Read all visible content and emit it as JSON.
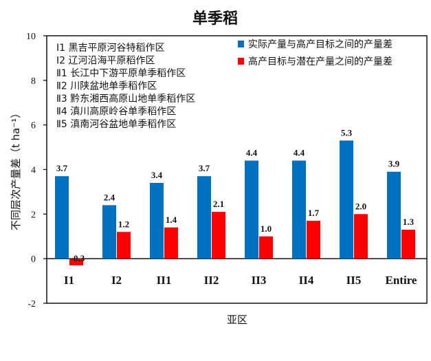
{
  "chart_data": {
    "type": "bar",
    "title": "单季稻",
    "xlabel": "亚区",
    "ylabel": "不同层次产量差（t ha⁻¹）",
    "ylim": [
      -2,
      10
    ],
    "yticks": [
      -2,
      0,
      2,
      4,
      6,
      8,
      10
    ],
    "grid": false,
    "legend_position": "top-right",
    "categories": [
      "I1",
      "I2",
      "II1",
      "II2",
      "II3",
      "II4",
      "II5",
      "Entire"
    ],
    "series": [
      {
        "name": "实际产量与高产目标之间的产量差",
        "color": "#0070c0",
        "values": [
          3.7,
          2.4,
          3.4,
          3.7,
          4.4,
          4.4,
          5.3,
          3.9
        ],
        "labels": [
          "3.7",
          "2.4",
          "3.4",
          "3.7",
          "4.4",
          "4.4",
          "5.3",
          "3.9"
        ]
      },
      {
        "name": "高产目标与潜在产量之间的产量差",
        "color": "#ff0000",
        "values": [
          -0.3,
          1.2,
          1.4,
          2.1,
          1.0,
          1.7,
          2.0,
          1.3
        ],
        "labels": [
          "-0.3",
          "1.2",
          "1.4",
          "2.1",
          "1.0",
          "1.7",
          "2.0",
          "1.3"
        ]
      }
    ],
    "annotations": [
      "Ⅰ1 黑吉平原河谷特稻作区",
      "Ⅰ2 辽河沿海平原稻作区",
      "Ⅱ1 长江中下游平原单季稻作区",
      "Ⅱ2 川陕盆地单季稻作区",
      "Ⅱ3 黔东湘西高原山地单季稻作区",
      "Ⅱ4 滇川高原岭谷单季稻作区",
      "Ⅱ5 滇南河谷盆地单季稻作区"
    ]
  }
}
